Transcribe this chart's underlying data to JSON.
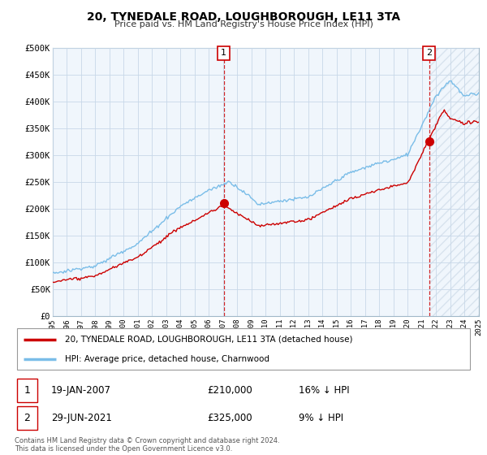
{
  "title": "20, TYNEDALE ROAD, LOUGHBOROUGH, LE11 3TA",
  "subtitle": "Price paid vs. HM Land Registry's House Price Index (HPI)",
  "sale1_date": "19-JAN-2007",
  "sale1_price": 210000,
  "sale1_label": "1",
  "sale1_year": 2007.05,
  "sale2_date": "29-JUN-2021",
  "sale2_price": 325000,
  "sale2_label": "2",
  "sale2_year": 2021.5,
  "legend_line1": "20, TYNEDALE ROAD, LOUGHBOROUGH, LE11 3TA (detached house)",
  "legend_line2": "HPI: Average price, detached house, Charnwood",
  "note1_date": "19-JAN-2007",
  "note1_price": "£210,000",
  "note1_hpi": "16% ↓ HPI",
  "note2_date": "29-JUN-2021",
  "note2_price": "£325,000",
  "note2_hpi": "9% ↓ HPI",
  "footer": "Contains HM Land Registry data © Crown copyright and database right 2024.\nThis data is licensed under the Open Government Licence v3.0.",
  "hpi_color": "#7abde8",
  "price_color": "#cc0000",
  "vline_color": "#cc0000",
  "bg_color": "#f0f6fc",
  "ylim": [
    0,
    500000
  ],
  "xlim_start": 1995,
  "xlim_end": 2025.0
}
